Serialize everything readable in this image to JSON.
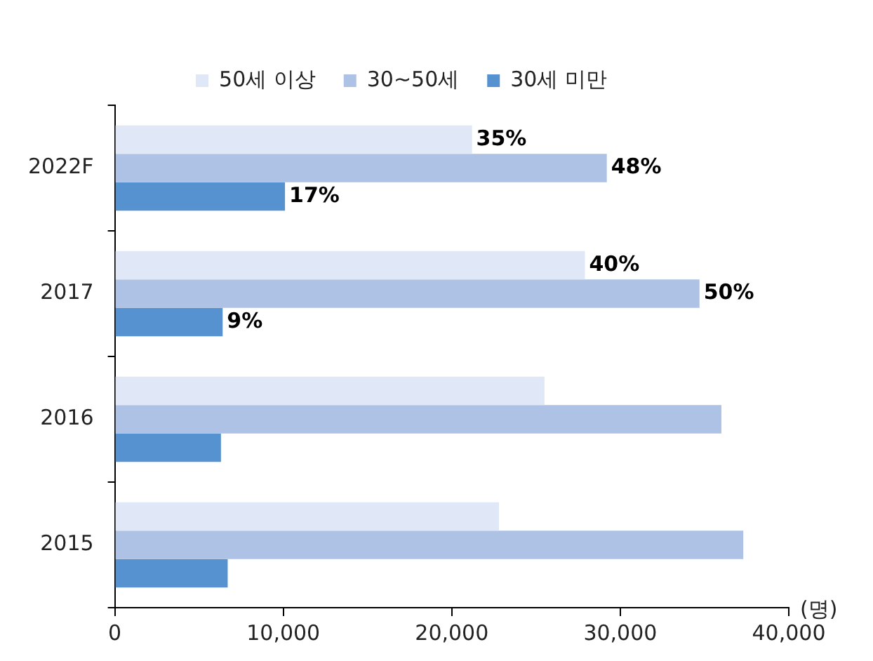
{
  "chart_data": {
    "type": "bar",
    "orientation": "horizontal",
    "xlabel": "(명)",
    "categories": [
      "2022F",
      "2017",
      "2016",
      "2015"
    ],
    "series": [
      {
        "name": "50세 이상",
        "color": "#e0e7f6",
        "values": [
          21200,
          27900,
          25500,
          22800
        ]
      },
      {
        "name": "30~50세",
        "color": "#adc2e5",
        "values": [
          29200,
          34700,
          36000,
          37300
        ]
      },
      {
        "name": "30세 미만",
        "color": "#5592cf",
        "values": [
          10100,
          6400,
          6300,
          6700
        ]
      }
    ],
    "annotations": [
      "35%",
      "48%",
      "17%",
      "40%",
      "50%",
      "9%"
    ],
    "xlim": [
      0,
      40000
    ],
    "xticks": [
      {
        "value": 0,
        "label": "0"
      },
      {
        "value": 10000,
        "label": "10,000"
      },
      {
        "value": 20000,
        "label": "20,000"
      },
      {
        "value": 30000,
        "label": "30,000"
      },
      {
        "value": 40000,
        "label": "40,000"
      }
    ],
    "grid": false,
    "legend": "top"
  }
}
